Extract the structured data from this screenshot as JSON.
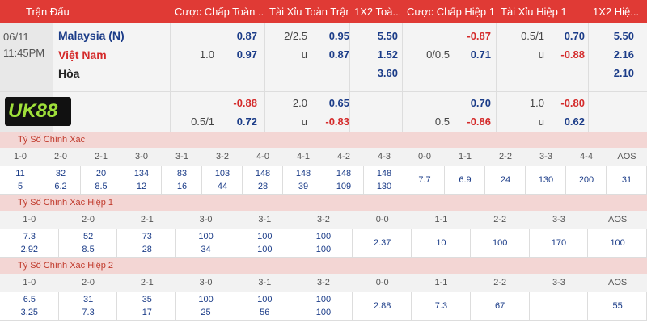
{
  "header": [
    "Trận Đấu",
    "Cược Chấp Toàn ...",
    "Tài Xỉu Toàn Trận",
    "1X2 Toà...",
    "Cược Chấp Hiệp 1",
    "Tài Xỉu Hiệp 1",
    "1X2 Hiệ..."
  ],
  "match": {
    "date": "06/11",
    "time": "11:45PM",
    "home": "Malaysia (N)",
    "away": "Việt Nam",
    "draw": "Hòa",
    "logo": "UK88"
  },
  "odds_rows": [
    [
      null,
      "0.87",
      "2/2.5",
      "0.95",
      "5.50",
      null,
      "-0.87",
      "0.5/1",
      "0.70",
      "5.50"
    ],
    [
      "1.0",
      "0.97",
      "u",
      "0.87",
      "1.52",
      "0/0.5",
      "0.71",
      "u",
      "-0.88",
      "2.16"
    ],
    [
      null,
      null,
      null,
      null,
      "3.60",
      null,
      null,
      null,
      null,
      "2.10"
    ],
    [
      null,
      "-0.88",
      "2.0",
      "0.65",
      null,
      null,
      "0.70",
      "1.0",
      "-0.80",
      null
    ],
    [
      "0.5/1",
      "0.72",
      "u",
      "-0.83",
      null,
      "0.5",
      "-0.86",
      "u",
      "0.62",
      null
    ]
  ],
  "sections": [
    {
      "title": "Tỷ Số Chính Xác",
      "columns": [
        "1-0",
        "2-0",
        "2-1",
        "3-0",
        "3-1",
        "3-2",
        "4-0",
        "4-1",
        "4-2",
        "4-3",
        "0-0",
        "1-1",
        "2-2",
        "3-3",
        "4-4",
        "AOS"
      ],
      "top": [
        "11",
        "32",
        "20",
        "134",
        "83",
        "103",
        "148",
        "148",
        "148",
        "148"
      ],
      "bottom": [
        "5",
        "6.2",
        "8.5",
        "12",
        "16",
        "44",
        "28",
        "39",
        "109",
        "130"
      ],
      "single": [
        "7.7",
        "6.9",
        "24",
        "130",
        "200",
        "31"
      ]
    },
    {
      "title": "Tỷ Số Chính Xác Hiệp 1",
      "columns": [
        "1-0",
        "2-0",
        "2-1",
        "3-0",
        "3-1",
        "3-2",
        "0-0",
        "1-1",
        "2-2",
        "3-3",
        "AOS"
      ],
      "top": [
        "7.3",
        "52",
        "73",
        "100",
        "100",
        "100"
      ],
      "bottom": [
        "2.92",
        "8.5",
        "28",
        "34",
        "100",
        "100"
      ],
      "single": [
        "2.37",
        "10",
        "100",
        "170",
        "100"
      ]
    },
    {
      "title": "Tỷ Số Chính Xác Hiệp 2",
      "columns": [
        "1-0",
        "2-0",
        "2-1",
        "3-0",
        "3-1",
        "3-2",
        "0-0",
        "1-1",
        "2-2",
        "3-3",
        "AOS"
      ],
      "top": [
        "6.5",
        "31",
        "35",
        "100",
        "100",
        "100"
      ],
      "bottom": [
        "3.25",
        "7.3",
        "17",
        "25",
        "56",
        "100"
      ],
      "single": [
        "2.88",
        "7.3",
        "67",
        null,
        "55"
      ]
    }
  ]
}
